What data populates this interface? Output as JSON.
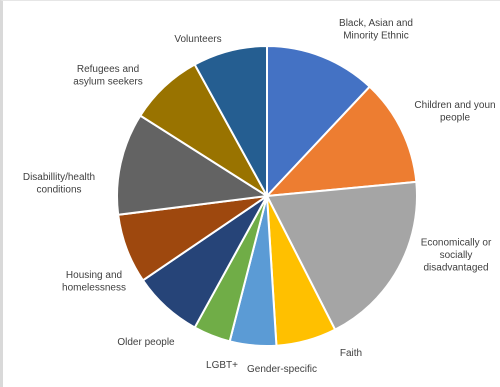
{
  "chart_data": {
    "type": "pie",
    "title": "",
    "legend": "none",
    "start_angle_deg": 0,
    "direction": "clockwise",
    "slices": [
      {
        "label": [
          "Black, Asian and",
          "Minority Ethnic"
        ],
        "value": 12.0,
        "color": "#4472c4"
      },
      {
        "label": [
          "Children and youn",
          "people"
        ],
        "value": 11.5,
        "color": "#ed7d31"
      },
      {
        "label": [
          "Economically or",
          "socially",
          "disadvantaged"
        ],
        "value": 19.0,
        "color": "#a5a5a5"
      },
      {
        "label": [
          "Faith"
        ],
        "value": 6.5,
        "color": "#ffc000"
      },
      {
        "label": [
          "Gender-specific"
        ],
        "value": 5.0,
        "color": "#5b9bd5"
      },
      {
        "label": [
          "LGBT+"
        ],
        "value": 4.0,
        "color": "#70ad47"
      },
      {
        "label": [
          "Older people"
        ],
        "value": 7.5,
        "color": "#264478"
      },
      {
        "label": [
          "Housing and",
          "homelessness"
        ],
        "value": 7.5,
        "color": "#9e480e"
      },
      {
        "label": [
          "Disabillity/health",
          "conditions"
        ],
        "value": 11.0,
        "color": "#636363"
      },
      {
        "label": [
          "Refugees and",
          "asylum seekers"
        ],
        "value": 8.0,
        "color": "#997300"
      },
      {
        "label": [
          "Volunteers"
        ],
        "value": 8.0,
        "color": "#255e91"
      }
    ]
  }
}
